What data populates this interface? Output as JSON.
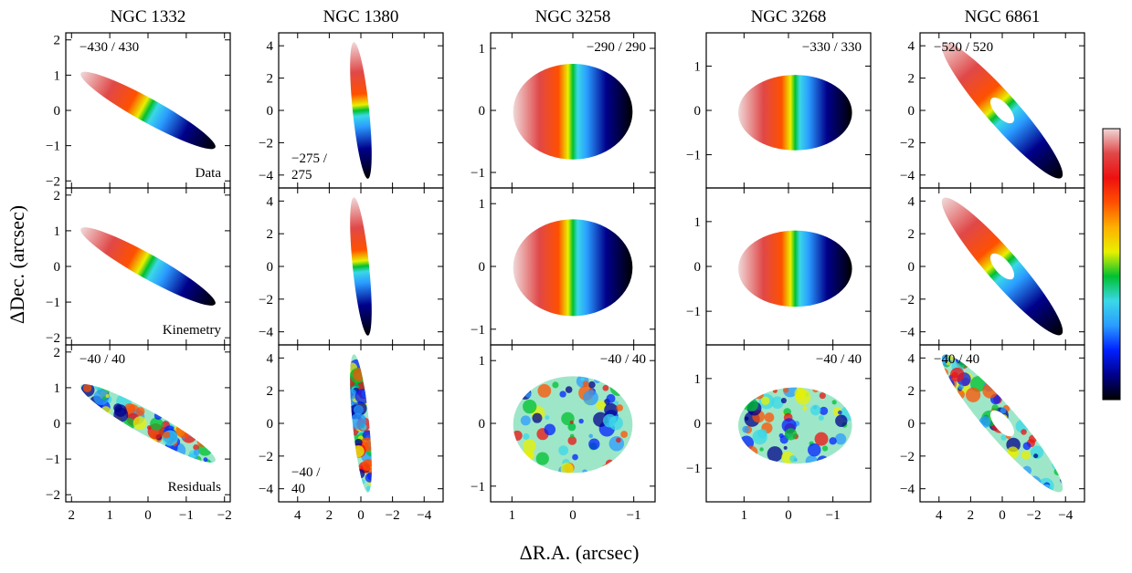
{
  "axes": {
    "x_label": "ΔR.A. (arcsec)",
    "y_label": "ΔDec. (arcsec)"
  },
  "row_labels": [
    "Data",
    "Kinemetry",
    "Residuals"
  ],
  "colors": {
    "colorbar": [
      "#000000",
      "#00008b",
      "#0020ff",
      "#2a9bff",
      "#3ad8e8",
      "#00c030",
      "#e8f000",
      "#ffb000",
      "#ff5000",
      "#ee1010",
      "#e04848",
      "#f0d8d8"
    ],
    "residual_field": "#9ee6c8"
  },
  "columns": [
    {
      "name": "NGC 1332",
      "xlim": [
        2.15,
        -2.15
      ],
      "ylim": [
        -2.2,
        2.2
      ],
      "xticks": [
        2,
        1,
        0,
        -1,
        -2
      ],
      "yticks": [
        -2,
        -1,
        0,
        1,
        2
      ],
      "shape": {
        "cx": 0,
        "cy": 0,
        "a": 2.05,
        "b": 0.33,
        "pa_deg": 31,
        "hole": 0
      },
      "ranges": [
        "−430 / 430",
        "",
        "−40 / 40"
      ],
      "range_corner": [
        "top-left",
        "",
        "top-left"
      ]
    },
    {
      "name": "NGC 1380",
      "xlim": [
        5.2,
        -5.2
      ],
      "ylim": [
        -4.8,
        4.8
      ],
      "xticks": [
        4,
        2,
        0,
        -2,
        -4
      ],
      "yticks": [
        -4,
        -2,
        0,
        2,
        4
      ],
      "shape": {
        "cx": 0,
        "cy": 0,
        "a": 4.25,
        "b": 0.52,
        "pa_deg": 84,
        "hole": 0
      },
      "ranges": [
        "−275 / 275",
        "",
        "−40 / 40"
      ],
      "range_corner": [
        "bottom-left",
        "",
        "bottom-left"
      ]
    },
    {
      "name": "NGC 3258",
      "xlim": [
        1.35,
        -1.35
      ],
      "ylim": [
        -1.25,
        1.25
      ],
      "xticks": [
        1,
        0,
        -1
      ],
      "yticks": [
        -1,
        0,
        1
      ],
      "shape": {
        "cx": 0,
        "cy": -0.02,
        "a": 0.98,
        "b": 0.77,
        "pa_deg": 0,
        "hole": 0
      },
      "ranges": [
        "−290 / 290",
        "",
        "−40 / 40"
      ],
      "range_corner": [
        "top-right",
        "",
        "top-right"
      ]
    },
    {
      "name": "NGC 3268",
      "xlim": [
        1.85,
        -1.85
      ],
      "ylim": [
        -1.75,
        1.75
      ],
      "xticks": [
        1,
        0,
        -1
      ],
      "yticks": [
        -1,
        0,
        1
      ],
      "shape": {
        "cx": -0.15,
        "cy": -0.05,
        "a": 1.28,
        "b": 0.85,
        "pa_deg": 0,
        "hole": 0
      },
      "ranges": [
        "−330 / 330",
        "",
        "−40 / 40"
      ],
      "range_corner": [
        "top-right",
        "",
        "top-right"
      ]
    },
    {
      "name": "NGC 6861",
      "xlim": [
        5.2,
        -5.2
      ],
      "ylim": [
        -4.8,
        4.8
      ],
      "xticks": [
        4,
        2,
        0,
        -2,
        -4
      ],
      "yticks": [
        -4,
        -2,
        0,
        2,
        4
      ],
      "shape": {
        "cx": 0,
        "cy": 0,
        "a": 5.6,
        "b": 1.0,
        "pa_deg": 48,
        "hole": 0.5
      },
      "ranges": [
        "−520 / 520",
        "",
        "−40 / 40"
      ],
      "range_corner": [
        "top-left",
        "",
        "top-left"
      ]
    }
  ]
}
